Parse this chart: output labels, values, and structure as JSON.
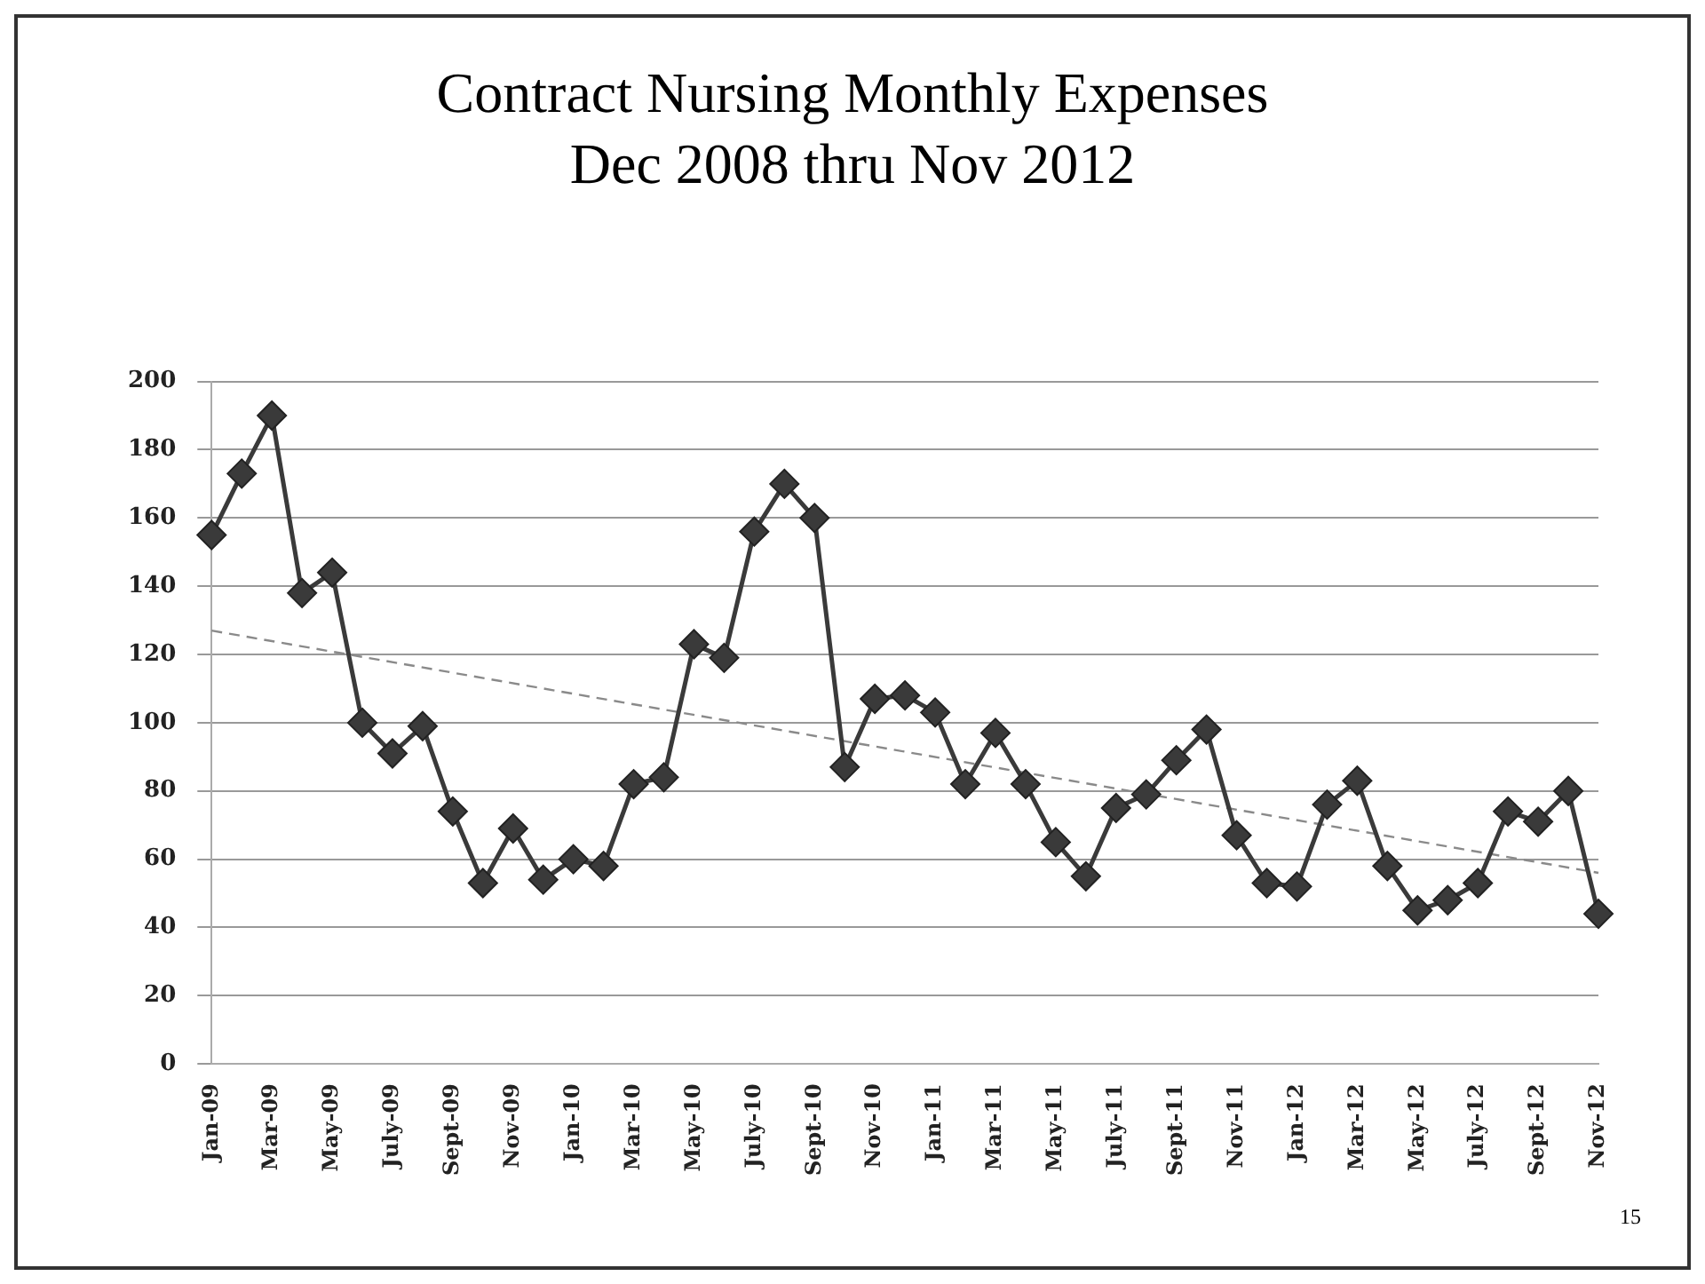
{
  "chart_data": {
    "type": "line",
    "title": "Contract Nursing Monthly Expenses\nDec 2008 thru Nov 2012",
    "categories": [
      "Jan-09",
      null,
      "Mar-09",
      null,
      "May-09",
      null,
      "July-09",
      null,
      "Sept-09",
      null,
      "Nov-09",
      null,
      "Jan-10",
      null,
      "Mar-10",
      null,
      "May-10",
      null,
      "July-10",
      null,
      "Sept-10",
      null,
      "Nov-10",
      null,
      "Jan-11",
      null,
      "Mar-11",
      null,
      "May-11",
      null,
      "July-11",
      null,
      "Sept-11",
      null,
      "Nov-11",
      null,
      "Jan-12",
      null,
      "Mar-12",
      null,
      "May-12",
      null,
      "July-12",
      null,
      "Sept-12",
      null,
      "Nov-12"
    ],
    "series": [
      {
        "color": "#3a3a3a",
        "marker": "diamond",
        "line_style": "solid",
        "values": [
          155,
          173,
          190,
          138,
          144,
          100,
          91,
          99,
          74,
          53,
          69,
          54,
          60,
          58,
          82,
          84,
          123,
          119,
          156,
          170,
          160,
          87,
          107,
          108,
          103,
          82,
          97,
          82,
          65,
          55,
          75,
          79,
          89,
          98,
          67,
          53,
          52,
          76,
          83,
          58,
          45,
          48,
          53,
          74,
          71,
          80,
          44
        ]
      },
      {
        "type": "line",
        "color": "#8a8a8a",
        "marker": "none",
        "line_style": "dashed",
        "x": [
          "Jan-09",
          "Nov-12"
        ],
        "values": [
          127,
          56
        ]
      }
    ],
    "ylim": [
      0,
      200
    ],
    "yticks": [
      0,
      20,
      40,
      60,
      80,
      100,
      120,
      140,
      160,
      180,
      200
    ],
    "grid": "y",
    "legend": false,
    "annotations": [
      "15"
    ]
  }
}
